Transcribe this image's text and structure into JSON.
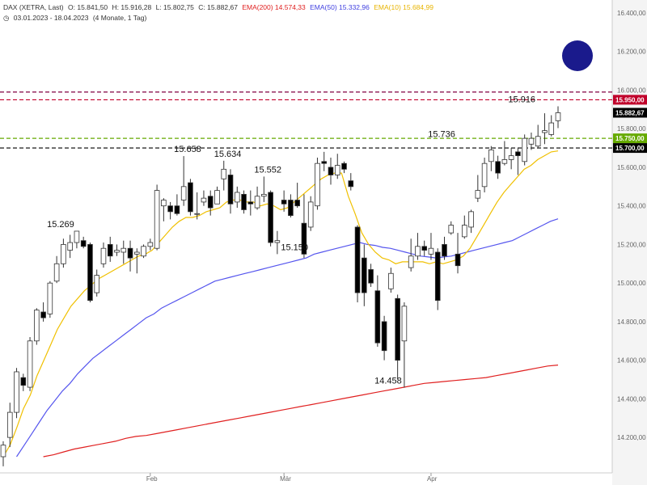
{
  "header": {
    "instrument": "DAX (XETRA, Last)",
    "open": "O: 15.841,50",
    "high": "H: 15.916,28",
    "low": "L: 15.802,75",
    "close": "C: 15.882,67",
    "ema200": "EMA(200)  14.574,33",
    "ema50": "EMA(50)  15.332,96",
    "ema10": "EMA(10)  15.684,99",
    "range": "03.01.2023 - 18.04.2023",
    "period": "(4 Monate, 1 Tag)"
  },
  "colors": {
    "ema200": "#e02020",
    "ema50": "#5555ee",
    "ema10": "#f0c000",
    "level_red": "#c0002a",
    "level_green": "#66aa00",
    "level_black": "#000000",
    "circle": "#1a1a8c"
  },
  "chart_data": {
    "type": "candlestick",
    "ylim": [
      14100,
      16500
    ],
    "y_ticks": [
      "16.400,00",
      "16.200,00",
      "16.000,00",
      "15.800,00",
      "15.600,00",
      "15.400,00",
      "15.200,00",
      "15.000,00",
      "14.800,00",
      "14.600,00",
      "14.400,00",
      "14.200,00"
    ],
    "y_tick_values": [
      16400,
      16200,
      16000,
      15800,
      15600,
      15400,
      15200,
      15000,
      14800,
      14600,
      14400,
      14200
    ],
    "x_labels": [
      {
        "label": "Feb",
        "index": 22
      },
      {
        "label": "Mär",
        "index": 42
      },
      {
        "label": "Apr",
        "index": 64
      }
    ],
    "levels": [
      {
        "value": 15990,
        "label": "",
        "style": "dashed",
        "color": "#800040"
      },
      {
        "value": 15950,
        "label": "15.950,00",
        "style": "dashed",
        "color": "#c0002a"
      },
      {
        "value": 15882.67,
        "label": "15.882,67",
        "style": "none",
        "color": "#000000"
      },
      {
        "value": 15750,
        "label": "15.750,00",
        "style": "dashed",
        "color": "#66aa00"
      },
      {
        "value": 15700,
        "label": "15.700,00",
        "style": "dashed",
        "color": "#000000"
      }
    ],
    "annotations": [
      {
        "text": "15.269",
        "index": 8,
        "value": 15269
      },
      {
        "text": "15.658",
        "index": 27,
        "value": 15658
      },
      {
        "text": "15.634",
        "index": 33,
        "value": 15634
      },
      {
        "text": "15.552",
        "index": 39,
        "value": 15552
      },
      {
        "text": "15.150",
        "index": 43,
        "value": 15150
      },
      {
        "text": "14.458",
        "index": 57,
        "value": 14458
      },
      {
        "text": "15.736",
        "index": 65,
        "value": 15736
      },
      {
        "text": "15.916",
        "index": 77,
        "value": 15916
      }
    ],
    "candles": [
      [
        14100,
        14160,
        14050,
        14180
      ],
      [
        14200,
        14330,
        14150,
        14380
      ],
      [
        14330,
        14540,
        14300,
        14560
      ],
      [
        14510,
        14470,
        14440,
        14530
      ],
      [
        14460,
        14700,
        14440,
        14720
      ],
      [
        14700,
        14860,
        14680,
        14870
      ],
      [
        14850,
        14820,
        14800,
        14900
      ],
      [
        14840,
        15000,
        14820,
        15010
      ],
      [
        15010,
        15100,
        15000,
        15140
      ],
      [
        15100,
        15200,
        15080,
        15230
      ],
      [
        15170,
        15210,
        15130,
        15250
      ],
      [
        15210,
        15269,
        15180,
        15269
      ],
      [
        15220,
        15190,
        15180,
        15240
      ],
      [
        15200,
        14910,
        14900,
        15210
      ],
      [
        14950,
        15040,
        14930,
        15070
      ],
      [
        15100,
        15180,
        15080,
        15210
      ],
      [
        15200,
        15140,
        15110,
        15240
      ],
      [
        15160,
        15170,
        15140,
        15200
      ],
      [
        15160,
        15180,
        15100,
        15220
      ],
      [
        15180,
        15130,
        15060,
        15220
      ],
      [
        15150,
        15160,
        15050,
        15180
      ],
      [
        15140,
        15190,
        15130,
        15200
      ],
      [
        15190,
        15210,
        15170,
        15230
      ],
      [
        15180,
        15480,
        15170,
        15510
      ],
      [
        15400,
        15430,
        15320,
        15440
      ],
      [
        15400,
        15370,
        15330,
        15420
      ],
      [
        15400,
        15360,
        15350,
        15460
      ],
      [
        15430,
        15500,
        15400,
        15658
      ],
      [
        15520,
        15370,
        15350,
        15540
      ],
      [
        15360,
        15360,
        15330,
        15470
      ],
      [
        15420,
        15440,
        15400,
        15480
      ],
      [
        15450,
        15390,
        15350,
        15480
      ],
      [
        15410,
        15480,
        15420,
        15500
      ],
      [
        15540,
        15590,
        15480,
        15634
      ],
      [
        15560,
        15410,
        15360,
        15590
      ],
      [
        15420,
        15470,
        15390,
        15500
      ],
      [
        15460,
        15380,
        15360,
        15480
      ],
      [
        15420,
        15410,
        15350,
        15480
      ],
      [
        15390,
        15450,
        15380,
        15500
      ],
      [
        15450,
        15460,
        15420,
        15552
      ],
      [
        15470,
        15210,
        15190,
        15480
      ],
      [
        15210,
        15220,
        15150,
        15270
      ],
      [
        15430,
        15410,
        15370,
        15480
      ],
      [
        15430,
        15350,
        15340,
        15460
      ],
      [
        15430,
        15400,
        15390,
        15520
      ],
      [
        15310,
        15150,
        15130,
        15460
      ],
      [
        15290,
        15420,
        15270,
        15450
      ],
      [
        15400,
        15620,
        15380,
        15650
      ],
      [
        15630,
        15620,
        15580,
        15680
      ],
      [
        15600,
        15560,
        15510,
        15650
      ],
      [
        15560,
        15610,
        15540,
        15670
      ],
      [
        15620,
        15590,
        15570,
        15630
      ],
      [
        15530,
        15500,
        15480,
        15570
      ],
      [
        15290,
        14950,
        14900,
        15300
      ],
      [
        15130,
        14950,
        14880,
        15200
      ],
      [
        15070,
        15000,
        14980,
        15100
      ],
      [
        14960,
        14690,
        14670,
        15040
      ],
      [
        14800,
        14650,
        14600,
        14830
      ],
      [
        14970,
        15050,
        14950,
        15080
      ],
      [
        14920,
        14600,
        14500,
        14940
      ],
      [
        14700,
        14880,
        14458,
        14900
      ],
      [
        15080,
        15140,
        15060,
        15230
      ],
      [
        15140,
        15190,
        15120,
        15260
      ],
      [
        15190,
        15170,
        15140,
        15220
      ],
      [
        15150,
        15180,
        15120,
        15260
      ],
      [
        15160,
        14910,
        14860,
        15180
      ],
      [
        15200,
        15140,
        15120,
        15240
      ],
      [
        15260,
        15300,
        15250,
        15320
      ],
      [
        15150,
        15090,
        15050,
        15260
      ],
      [
        15240,
        15300,
        15230,
        15350
      ],
      [
        15290,
        15370,
        15260,
        15380
      ],
      [
        15440,
        15480,
        15420,
        15560
      ],
      [
        15500,
        15620,
        15470,
        15650
      ],
      [
        15630,
        15690,
        15580,
        15710
      ],
      [
        15630,
        15570,
        15540,
        15660
      ],
      [
        15620,
        15640,
        15610,
        15736
      ],
      [
        15640,
        15660,
        15590,
        15700
      ],
      [
        15680,
        15660,
        15560,
        15700
      ],
      [
        15630,
        15750,
        15610,
        15770
      ],
      [
        15720,
        15750,
        15690,
        15780
      ],
      [
        15710,
        15760,
        15700,
        15820
      ],
      [
        15780,
        15790,
        15720,
        15880
      ],
      [
        15770,
        15830,
        15760,
        15870
      ],
      [
        15841.5,
        15882.67,
        15802.75,
        15916.28
      ]
    ],
    "ema10": [
      14100,
      14160,
      14250,
      14350,
      14420,
      14520,
      14600,
      14680,
      14760,
      14820,
      14880,
      14920,
      14960,
      14990,
      15020,
      15040,
      15060,
      15080,
      15100,
      15120,
      15140,
      15150,
      15170,
      15210,
      15250,
      15290,
      15320,
      15340,
      15340,
      15350,
      15370,
      15380,
      15390,
      15420,
      15430,
      15430,
      15420,
      15420,
      15400,
      15410,
      15400,
      15380,
      15390,
      15420,
      15450,
      15480,
      15510,
      15540,
      15560,
      15570,
      15570,
      15450,
      15360,
      15260,
      15200,
      15160,
      15130,
      15120,
      15100,
      15110,
      15110,
      15110,
      15110,
      15100,
      15110,
      15100,
      15110,
      15120,
      15140,
      15180,
      15240,
      15300,
      15360,
      15420,
      15470,
      15510,
      15550,
      15590,
      15610,
      15640,
      15660,
      15680,
      15685
    ],
    "ema50": [
      14100,
      14160,
      14220,
      14280,
      14340,
      14390,
      14440,
      14480,
      14530,
      14570,
      14610,
      14640,
      14670,
      14700,
      14730,
      14760,
      14790,
      14820,
      14840,
      14870,
      14890,
      14910,
      14930,
      14950,
      14970,
      14990,
      15010,
      15020,
      15030,
      15040,
      15050,
      15060,
      15070,
      15080,
      15090,
      15100,
      15110,
      15120,
      15130,
      15150,
      15160,
      15170,
      15180,
      15190,
      15200,
      15210,
      15200,
      15195,
      15185,
      15180,
      15170,
      15160,
      15150,
      15140,
      15135,
      15130,
      15135,
      15140,
      15150,
      15160,
      15170,
      15180,
      15190,
      15200,
      15210,
      15220,
      15240,
      15260,
      15280,
      15300,
      15320,
      15333
    ],
    "ema200": [
      14100,
      14110,
      14125,
      14140,
      14150,
      14160,
      14170,
      14180,
      14195,
      14205,
      14210,
      14220,
      14230,
      14240,
      14250,
      14260,
      14270,
      14280,
      14290,
      14300,
      14310,
      14320,
      14330,
      14340,
      14350,
      14360,
      14370,
      14380,
      14390,
      14400,
      14410,
      14420,
      14430,
      14440,
      14450,
      14460,
      14470,
      14480,
      14485,
      14490,
      14495,
      14500,
      14505,
      14510,
      14520,
      14530,
      14540,
      14550,
      14560,
      14570,
      14575
    ]
  }
}
